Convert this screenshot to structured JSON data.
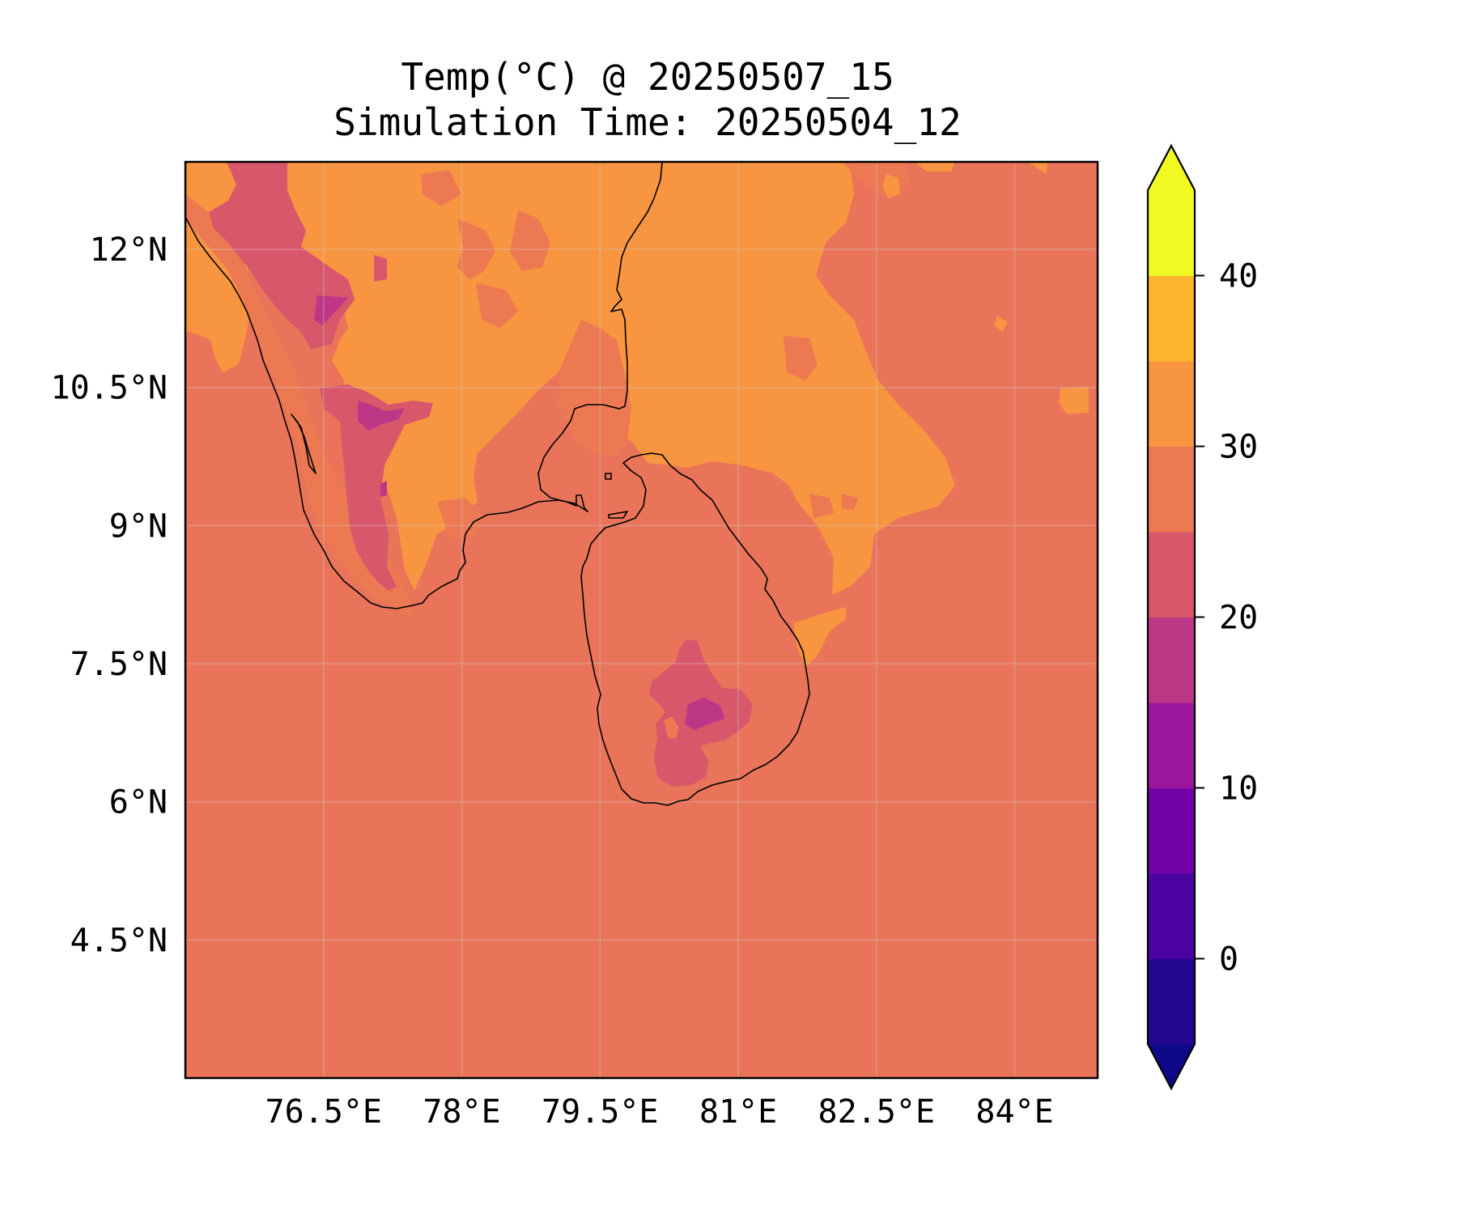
{
  "title": {
    "line1": "Temp(°C) @ 20250507_15",
    "line2": "Simulation Time: 20250504_12"
  },
  "map": {
    "lon_range": [
      75.0,
      84.9
    ],
    "lat_range": [
      3.0,
      12.95
    ],
    "lon_ticks": [
      {
        "value": 76.5,
        "label": "76.5°E"
      },
      {
        "value": 78.0,
        "label": "78°E"
      },
      {
        "value": 79.5,
        "label": "79.5°E"
      },
      {
        "value": 81.0,
        "label": "81°E"
      },
      {
        "value": 82.5,
        "label": "82.5°E"
      },
      {
        "value": 84.0,
        "label": "84°E"
      }
    ],
    "lat_ticks": [
      {
        "value": 12.0,
        "label": "12°N"
      },
      {
        "value": 10.5,
        "label": "10.5°N"
      },
      {
        "value": 9.0,
        "label": "9°N"
      },
      {
        "value": 7.5,
        "label": "7.5°N"
      },
      {
        "value": 6.0,
        "label": "6°N"
      },
      {
        "value": 4.5,
        "label": "4.5°N"
      }
    ],
    "gridlines": true,
    "background_color": "#e9745a"
  },
  "colorbar": {
    "colormap": "plasma",
    "extend": "both",
    "levels": [
      -5,
      0,
      5,
      10,
      15,
      20,
      25,
      30,
      35,
      40,
      45
    ],
    "colors": [
      "#220690",
      "#4a02a0",
      "#7201a8",
      "#9c179e",
      "#bd3786",
      "#d8576b",
      "#ed7953",
      "#f89540",
      "#fdb42f",
      "#f0f921"
    ],
    "under_color": "#0d0887",
    "over_color": "#f0f921",
    "ticks": [
      {
        "value": 0,
        "label": "0"
      },
      {
        "value": 10,
        "label": "10"
      },
      {
        "value": 20,
        "label": "20"
      },
      {
        "value": 30,
        "label": "30"
      },
      {
        "value": 40,
        "label": "40"
      }
    ]
  }
}
